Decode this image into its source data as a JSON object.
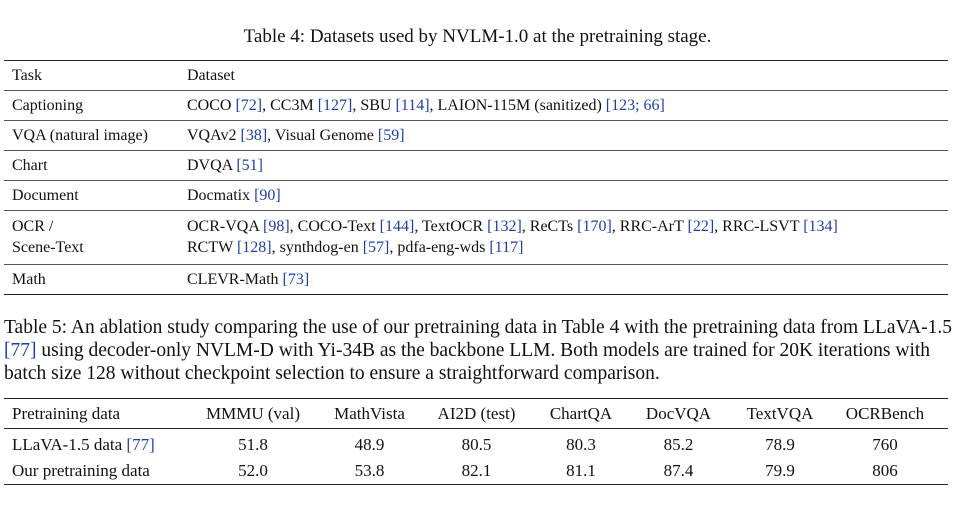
{
  "table4": {
    "caption": "Table 4: Datasets used by NVLM-1.0 at the pretraining stage.",
    "header": {
      "task": "Task",
      "dataset": "Dataset"
    },
    "rows": [
      {
        "task": "Captioning",
        "dataset": [
          {
            "t": "COCO "
          },
          {
            "t": "[72]",
            "c": 1
          },
          {
            "t": ", CC3M "
          },
          {
            "t": "[127]",
            "c": 1
          },
          {
            "t": ", SBU "
          },
          {
            "t": "[114]",
            "c": 1
          },
          {
            "t": ", LAION-115M (sanitized) "
          },
          {
            "t": "[123; 66]",
            "c": 1
          }
        ]
      },
      {
        "task": "VQA (natural image)",
        "dataset": [
          {
            "t": "VQAv2 "
          },
          {
            "t": "[38]",
            "c": 1
          },
          {
            "t": ", Visual Genome "
          },
          {
            "t": "[59]",
            "c": 1
          }
        ]
      },
      {
        "task": "Chart",
        "dataset": [
          {
            "t": "DVQA "
          },
          {
            "t": "[51]",
            "c": 1
          }
        ]
      },
      {
        "task": "Document",
        "dataset": [
          {
            "t": "Docmatix "
          },
          {
            "t": "[90]",
            "c": 1
          }
        ]
      },
      {
        "task_lines": [
          "OCR /",
          "Scene-Text"
        ],
        "dataset_lines": [
          [
            {
              "t": "OCR-VQA "
            },
            {
              "t": "[98]",
              "c": 1
            },
            {
              "t": ", COCO-Text "
            },
            {
              "t": "[144]",
              "c": 1
            },
            {
              "t": ", TextOCR "
            },
            {
              "t": "[132]",
              "c": 1
            },
            {
              "t": ", ReCTs "
            },
            {
              "t": "[170]",
              "c": 1
            },
            {
              "t": ", RRC-ArT "
            },
            {
              "t": "[22]",
              "c": 1
            },
            {
              "t": ", RRC-LSVT "
            },
            {
              "t": "[134]",
              "c": 1
            }
          ],
          [
            {
              "t": "RCTW "
            },
            {
              "t": "[128]",
              "c": 1
            },
            {
              "t": ", synthdog-en "
            },
            {
              "t": "[57]",
              "c": 1
            },
            {
              "t": ", pdfa-eng-wds "
            },
            {
              "t": "[117]",
              "c": 1
            }
          ]
        ]
      },
      {
        "task": "Math",
        "dataset": [
          {
            "t": "CLEVR-Math "
          },
          {
            "t": "[73]",
            "c": 1
          }
        ]
      }
    ]
  },
  "table5": {
    "caption": [
      {
        "t": "Table 5: An ablation study comparing the use of our pretraining data in Table 4 with the pretraining data from LLaVA-1.5 "
      },
      {
        "t": "[77]",
        "c": 1
      },
      {
        "t": " using decoder-only NVLM-D with Yi-34B as the backbone LLM. Both models are trained for 20K iterations with batch size 128 without checkpoint selection to ensure a straightforward comparison."
      }
    ],
    "columns": [
      "Pretraining data",
      "MMMU (val)",
      "MathVista",
      "AI2D (test)",
      "ChartQA",
      "DocVQA",
      "TextVQA",
      "OCRBench"
    ],
    "rows": [
      {
        "label": [
          {
            "t": "LLaVA-1.5 data "
          },
          {
            "t": "[77]",
            "c": 1
          }
        ],
        "values": [
          "51.8",
          "48.9",
          "80.5",
          "80.3",
          "85.2",
          "78.9",
          "760"
        ]
      },
      {
        "label": [
          {
            "t": "Our pretraining data"
          }
        ],
        "values": [
          "52.0",
          "53.8",
          "82.1",
          "81.1",
          "87.4",
          "79.9",
          "806"
        ]
      }
    ]
  }
}
